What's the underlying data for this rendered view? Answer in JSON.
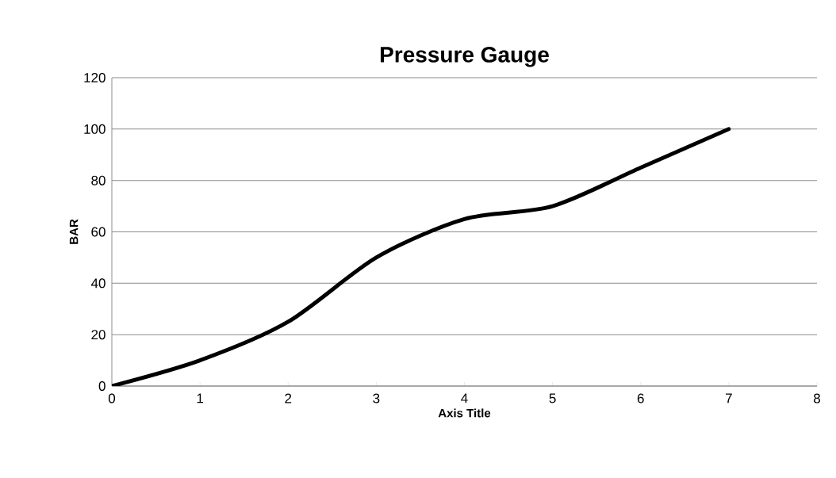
{
  "chart_data": {
    "type": "line",
    "title": "Pressure Gauge",
    "xlabel": "Axis Title",
    "ylabel": "BAR",
    "x": [
      0,
      1,
      2,
      3,
      4,
      5,
      6,
      7
    ],
    "series": [
      {
        "color": "#000000",
        "values": [
          0,
          10,
          25,
          50,
          65,
          70,
          85,
          100
        ]
      }
    ],
    "xlim": [
      0,
      8
    ],
    "xticks": [
      0,
      1,
      2,
      3,
      4,
      5,
      6,
      7,
      8
    ],
    "ylim": [
      0,
      120
    ],
    "yticks": [
      0,
      20,
      40,
      60,
      80,
      100,
      120
    ],
    "grid": "y",
    "marker": "none",
    "line_style": "solid"
  }
}
